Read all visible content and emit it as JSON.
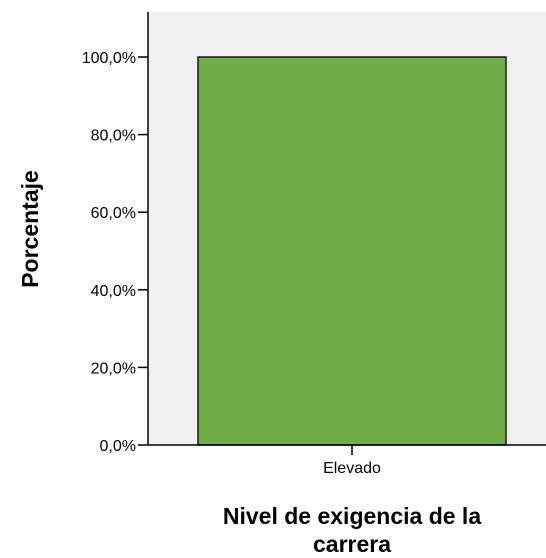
{
  "chart_data": {
    "type": "bar",
    "categories": [
      "Elevado"
    ],
    "values": [
      100.0
    ],
    "xlabel_lines": [
      "Nivel de exigencia de la",
      "carrera"
    ],
    "ylabel": "Porcentaje",
    "ylim": [
      0,
      100
    ],
    "yticks": [
      {
        "value": 0,
        "label": "0,0%"
      },
      {
        "value": 20,
        "label": "20,0%"
      },
      {
        "value": 40,
        "label": "40,0%"
      },
      {
        "value": 60,
        "label": "60,0%"
      },
      {
        "value": 80,
        "label": "80,0%"
      },
      {
        "value": 100,
        "label": "100,0%"
      }
    ],
    "grid": false,
    "colors": {
      "bar_fill": "#70ad47",
      "bar_stroke": "#1a1a1a",
      "plot_background": "#f0f0f0",
      "axis": "#000000"
    }
  }
}
